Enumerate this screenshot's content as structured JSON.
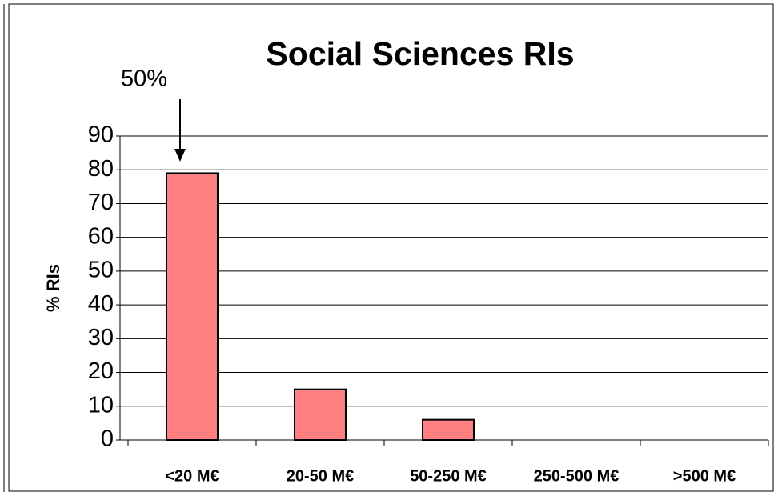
{
  "chart_data": {
    "type": "bar",
    "title": "Social Sciences RIs",
    "y_label": "% RIs",
    "annotation": "50%",
    "categories": [
      "<20 M€",
      "20-50 M€",
      "50-250 M€",
      "250-500 M€",
      ">500 M€"
    ],
    "values": [
      79,
      15,
      6,
      0,
      0
    ],
    "color": "#ff8080",
    "ylim": [
      0,
      90
    ],
    "yticks": [
      0,
      10,
      20,
      30,
      40,
      50,
      60,
      70,
      80,
      90
    ],
    "grid": true
  }
}
